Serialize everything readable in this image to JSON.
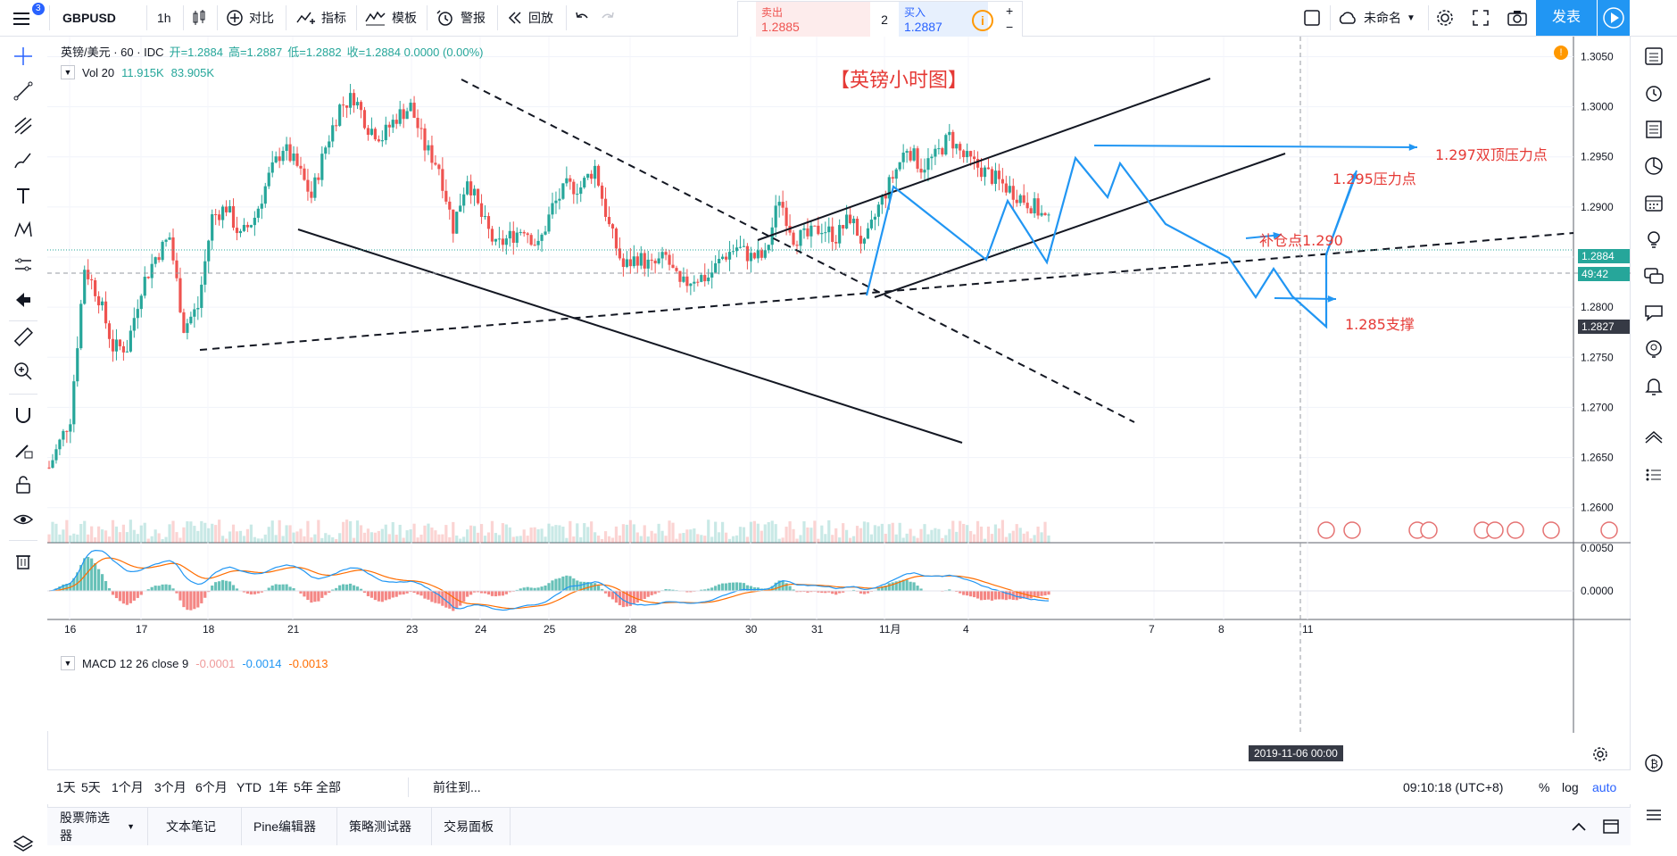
{
  "toolbar": {
    "symbol": "GBPUSD",
    "interval": "1h",
    "compare_label": "对比",
    "indicators_label": "指标",
    "templates_label": "模板",
    "alert_label": "警报",
    "replay_label": "回放",
    "menu_badge": "3",
    "sell_label": "卖出",
    "sell_price": "1.2885",
    "spread": "2",
    "buy_label": "买入",
    "buy_price": "1.2887",
    "layout_name": "未命名",
    "publish_label": "发表"
  },
  "legend": {
    "title": "英镑/美元 · 60 · IDC",
    "open": "开=1.2884",
    "high": "高=1.2887",
    "low": "低=1.2882",
    "close": "收=1.2884 0.0000 (0.00%)",
    "vol_label": "Vol 20",
    "vol1": "11.915K",
    "vol2": "83.905K",
    "macd_label": "MACD 12 26 close 9",
    "macd_hist": "-0.0001",
    "macd_line": "-0.0014",
    "macd_signal": "-0.0013"
  },
  "annotations": {
    "title": "【英镑小时图】",
    "a1": "1.297双顶压力点",
    "a2": "1.295压力点",
    "a3": "补仓点1.290",
    "a4": "1.285支撑"
  },
  "price_labels": {
    "last": "1.2884",
    "countdown": "49:42",
    "cross": "1.2827"
  },
  "chart_data": {
    "type": "candlestick",
    "title": "【英镑小时图】",
    "symbol": "英镑/美元",
    "timeframe": "60",
    "ohlc_last": {
      "open": 1.2884,
      "high": 1.2887,
      "low": 1.2882,
      "close": 1.2884
    },
    "yaxis_ticks": [
      "1.3050",
      "1.3000",
      "1.2950",
      "1.2900",
      "1.2850",
      "1.2800",
      "1.2750",
      "1.2700",
      "1.2650",
      "1.2600"
    ],
    "ylim": [
      1.2565,
      1.307
    ],
    "xaxis_ticks": [
      "16",
      "17",
      "18",
      "21",
      "23",
      "24",
      "25",
      "28",
      "30",
      "31",
      "11月",
      "4",
      "7",
      "8",
      "11"
    ],
    "xaxis_cursor_label": "2019-11-06  00:00",
    "macd_ticks": [
      "0.0050",
      "0.0000"
    ],
    "close_path": [
      [
        0,
        1.264
      ],
      [
        3,
        1.269
      ],
      [
        5,
        1.284
      ],
      [
        7,
        1.281
      ],
      [
        9,
        1.276
      ],
      [
        11,
        1.276
      ],
      [
        13,
        1.282
      ],
      [
        15,
        1.285
      ],
      [
        17,
        1.287
      ],
      [
        19,
        1.278
      ],
      [
        21,
        1.28
      ],
      [
        23,
        1.289
      ],
      [
        25,
        1.29
      ],
      [
        27,
        1.287
      ],
      [
        29,
        1.289
      ],
      [
        31,
        1.293
      ],
      [
        33,
        1.296
      ],
      [
        35,
        1.294
      ],
      [
        37,
        1.291
      ],
      [
        39,
        1.296
      ],
      [
        41,
        1.3
      ],
      [
        43,
        1.301
      ],
      [
        45,
        1.298
      ],
      [
        47,
        1.297
      ],
      [
        49,
        1.299
      ],
      [
        51,
        1.3
      ],
      [
        53,
        1.296
      ],
      [
        55,
        1.294
      ],
      [
        57,
        1.288
      ],
      [
        59,
        1.293
      ],
      [
        61,
        1.289
      ],
      [
        63,
        1.286
      ],
      [
        65,
        1.287
      ],
      [
        67,
        1.288
      ],
      [
        69,
        1.286
      ],
      [
        71,
        1.29
      ],
      [
        73,
        1.292
      ],
      [
        75,
        1.292
      ],
      [
        77,
        1.294
      ],
      [
        79,
        1.288
      ],
      [
        81,
        1.284
      ],
      [
        83,
        1.285
      ],
      [
        85,
        1.284
      ],
      [
        87,
        1.285
      ],
      [
        89,
        1.282
      ],
      [
        91,
        1.283
      ],
      [
        93,
        1.283
      ],
      [
        95,
        1.285
      ],
      [
        97,
        1.286
      ],
      [
        99,
        1.285
      ],
      [
        101,
        1.285
      ],
      [
        103,
        1.291
      ],
      [
        105,
        1.287
      ],
      [
        107,
        1.287
      ],
      [
        109,
        1.288
      ],
      [
        111,
        1.287
      ],
      [
        113,
        1.289
      ],
      [
        115,
        1.286
      ],
      [
        117,
        1.29
      ],
      [
        119,
        1.293
      ],
      [
        121,
        1.296
      ],
      [
        123,
        1.294
      ],
      [
        125,
        1.295
      ],
      [
        127,
        1.297
      ],
      [
        129,
        1.295
      ],
      [
        131,
        1.294
      ],
      [
        133,
        1.293
      ],
      [
        135,
        1.292
      ],
      [
        137,
        1.291
      ],
      [
        139,
        1.29
      ],
      [
        141,
        1.2884
      ]
    ],
    "volume_legend": {
      "label": "Vol 20",
      "v1": "11.915K",
      "v2": "83.905K"
    },
    "macd": {
      "params": "12 26 close 9",
      "hist": -0.0001,
      "macd": -0.0014,
      "signal": -0.0013
    }
  },
  "range_bar": [
    "1天",
    "5天",
    "1个月",
    "3个月",
    "6个月",
    "YTD",
    "1年",
    "5年",
    "全部"
  ],
  "goto_label": "前往到...",
  "clock": "09:10:18 (UTC+8)",
  "scale_opts": [
    "%",
    "log",
    "auto"
  ],
  "bottom_tabs": [
    "股票筛选器",
    "文本笔记",
    "Pine编辑器",
    "策略测试器",
    "交易面板"
  ],
  "colors": {
    "up": "#26a69a",
    "down": "#ef5350",
    "accent": "#2962ff",
    "annot": "#e53935",
    "draw": "#2196f3"
  }
}
